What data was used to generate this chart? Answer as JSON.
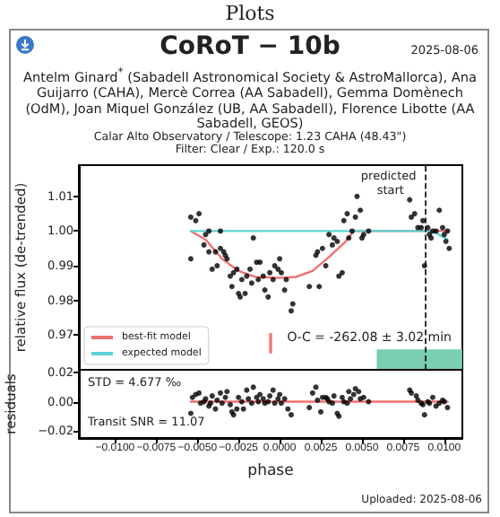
{
  "chart_data": [
    {
      "type": "scatter",
      "title": "CoRoT − 10b",
      "ylabel": "relative flux (de-trended)",
      "annotations": [
        "Plots",
        "2025-08-06",
        "Antelm Ginard$^{*}$ (Sabadell Astronomical Society & AstroMallorca), Ana Guijarro (CAHA), Mercè Correa (AA Sabadell), Gemma Domènech (OdM), Joan Miquel González (UB, AA Sabadell), Florence Libotte (AA Sabadell, GEOS)",
        "Calar Alto Observatory / Telescope: 1.23 CAHA (48.43\")",
        "Filter: Clear / Exp.: 120.0 s",
        "O-C = -262.08 ± 3.02 min"
      ],
      "xlim": [
        -0.0122,
        0.0111
      ],
      "xticks": [
        {
          "value": -0.01,
          "label": null
        },
        {
          "value": -0.0075,
          "label": null
        },
        {
          "value": -0.005,
          "label": null
        },
        {
          "value": -0.0025,
          "label": null
        },
        {
          "value": 0,
          "label": null
        },
        {
          "value": 0.0025,
          "label": null
        },
        {
          "value": 0.005,
          "label": null
        },
        {
          "value": 0.0075,
          "label": null
        },
        {
          "value": 0.01,
          "label": null
        }
      ],
      "ylim": [
        0.96,
        1.019
      ],
      "yticks": [
        {
          "value": 0.97,
          "label": "0.97"
        },
        {
          "value": 0.98,
          "label": "0.98"
        },
        {
          "value": 0.99,
          "label": "0.99"
        },
        {
          "value": 1,
          "label": "1.00"
        },
        {
          "value": 1.01,
          "label": "1.01"
        }
      ],
      "tick_labels": "y",
      "legend": "bottom left",
      "ref_lines": [
        {
          "axis": "x",
          "value": 0.0088,
          "label": "predicted start",
          "color": "#000000",
          "line_style": "dashed"
        },
        {
          "axis": "x",
          "value": -0.0006,
          "color": "#f07070"
        }
      ],
      "bands": [
        {
          "axis": "x",
          "from": 0.0059,
          "to": 0.0111,
          "color": "#6cc9a8"
        }
      ],
      "series": [
        {
          "marker": "circle",
          "color": "#000000",
          "x": [
            -0.0054,
            -0.0054,
            -0.0051,
            -0.0049,
            -0.0046,
            -0.0045,
            -0.0043,
            -0.0043,
            -0.0041,
            -0.0039,
            -0.0038,
            -0.0036,
            -0.0036,
            -0.0034,
            -0.0033,
            -0.0032,
            -0.003,
            -0.0029,
            -0.0028,
            -0.0026,
            -0.0025,
            -0.0024,
            -0.0023,
            -0.0021,
            -0.002,
            -0.0018,
            -0.0017,
            -0.0016,
            -0.0014,
            -0.0013,
            -0.0012,
            -0.001,
            -0.0009,
            -0.0007,
            -0.0006,
            -0.0004,
            -0.0003,
            -0.0001,
            0,
            0.0001,
            0.0003,
            0.0004,
            0.0007,
            0.0008,
            0.0018,
            0.0024,
            0.0022,
            0.0023,
            0.0026,
            0.0028,
            0.003,
            0.0032,
            0.0033,
            0.0035,
            0.0036,
            0.0038,
            0.0039,
            0.0041,
            0.0042,
            0.0044,
            0.0046,
            0.0047,
            0.0049,
            0.005,
            0.0051,
            0.0054,
            0.0079,
            0.008,
            0.0082,
            0.0084,
            0.0086,
            0.0087,
            0.0088,
            0.009,
            0.0091,
            0.0092,
            0.0093,
            0.0095,
            0.0097,
            0.0099,
            0.01,
            0.0101,
            0.0103,
            0.0102
          ],
          "values": [
            0.992,
            1.004,
            1.003,
            1.005,
            0.996,
            0.999,
            1,
            0.994,
            0.989,
            0.994,
            0.99,
            1,
            0.995,
            0.994,
            0.993,
            0.992,
            0.987,
            0.984,
            0.988,
            0.989,
            0.982,
            0.981,
            0.986,
            0.982,
            0.987,
            0.989,
            0.985,
            0.998,
            0.991,
            0.986,
            0.991,
            0.987,
            0.983,
            0.981,
            0.988,
            0.986,
            0.99,
            0.989,
            0.992,
            0.988,
            0.983,
            0.986,
            0.977,
            0.979,
            0.984,
            0.984,
            0.993,
            0.994,
            0.995,
            0.99,
            0.999,
            0.996,
            0.998,
            0.997,
            0.987,
            0.988,
            1.003,
            1.005,
            0.998,
            1,
            1.004,
            1.01,
            1.006,
            0.998,
            0.999,
            1,
            1.009,
            1.004,
            1.005,
            1.001,
            1.001,
            1.003,
            0.99,
            1.001,
            0.999,
            0.998,
            1,
            1,
            1.006,
            1.001,
            0.999,
            0.997,
            0.995,
            1
          ]
        },
        {
          "type": "line",
          "name": "best-fit model",
          "color": "#f07070",
          "x": [
            -0.0054,
            -0.0045,
            -0.0035,
            -0.0025,
            -0.0015,
            0,
            0.001,
            0.002,
            0.003,
            0.004,
            0.0045,
            0.0102
          ],
          "values": [
            1,
            0.9975,
            0.992,
            0.9885,
            0.9868,
            0.9865,
            0.9868,
            0.9885,
            0.9925,
            0.997,
            1,
            1
          ]
        },
        {
          "type": "line",
          "name": "expected model",
          "color": "#5fd3d3",
          "x": [
            -0.0054,
            0.0088,
            0.0095,
            0.0102
          ],
          "values": [
            1,
            1,
            0.9995,
            0.9975
          ]
        }
      ]
    },
    {
      "type": "scatter",
      "xlabel": "phase",
      "ylabel": "residuals",
      "annotations": [
        "STD = 4.677 ‰",
        "Transit SNR = 11.07",
        "Uploaded: 2025-08-06"
      ],
      "xlim": [
        -0.0122,
        0.0111
      ],
      "xticks": [
        {
          "value": -0.01,
          "label": "−0.0100"
        },
        {
          "value": -0.0075,
          "label": "−0.0075"
        },
        {
          "value": -0.005,
          "label": "−0.0050"
        },
        {
          "value": -0.0025,
          "label": "−0.0025"
        },
        {
          "value": 0,
          "label": "0.0000"
        },
        {
          "value": 0.0025,
          "label": "0.0025"
        },
        {
          "value": 0.005,
          "label": "0.0050"
        },
        {
          "value": 0.0075,
          "label": "0.0075"
        },
        {
          "value": 0.01,
          "label": "0.0100"
        }
      ],
      "ylim": [
        -0.025,
        0.022
      ],
      "yticks": [
        {
          "value": -0.02,
          "label": "−0.02"
        },
        {
          "value": 0,
          "label": "0.00"
        },
        {
          "value": 0.02,
          "label": "0.02"
        }
      ],
      "series": [
        {
          "marker": "circle",
          "color": "#000000",
          "x": [
            -0.0054,
            -0.0053,
            -0.0051,
            -0.0049,
            -0.0048,
            -0.0046,
            -0.0045,
            -0.0043,
            -0.0042,
            -0.0041,
            -0.0039,
            -0.0038,
            -0.0036,
            -0.0035,
            -0.0033,
            -0.0032,
            -0.003,
            -0.0029,
            -0.0028,
            -0.0026,
            -0.0025,
            -0.0023,
            -0.0022,
            -0.002,
            -0.0019,
            -0.0017,
            -0.0016,
            -0.0014,
            -0.0013,
            -0.0012,
            -0.001,
            -0.0009,
            -0.0007,
            -0.0006,
            -0.0004,
            -0.0003,
            -0.0001,
            0,
            0.0001,
            0.0003,
            0.0005,
            0.0007,
            0.0018,
            0.002,
            0.0022,
            0.0023,
            0.0025,
            0.0026,
            0.0028,
            0.0029,
            0.003,
            0.0032,
            0.0033,
            0.0035,
            0.0036,
            0.0038,
            0.0039,
            0.0041,
            0.0042,
            0.0043,
            0.0045,
            0.0046,
            0.0048,
            0.0049,
            0.0051,
            0.0054,
            0.0079,
            0.008,
            0.0083,
            0.0084,
            0.0086,
            0.0087,
            0.0088,
            0.009,
            0.0091,
            0.0093,
            0.0095,
            0.0097,
            0.0099,
            0.01,
            0.0102
          ],
          "values": [
            -0.008,
            0.003,
            0.005,
            0.006,
            -0.001,
            0,
            0.002,
            -0.003,
            -0.001,
            0.004,
            -0.005,
            0.001,
            0.006,
            -0.001,
            0.003,
            0.007,
            -0.002,
            -0.007,
            -0.009,
            -0.005,
            0.003,
            0,
            -0.005,
            0.008,
            0.002,
            -0.001,
            0.01,
            0.003,
            0,
            0.005,
            0.002,
            -0.001,
            0,
            0.004,
            0.008,
            -0.001,
            0.002,
            0.005,
            -0.001,
            0.002,
            -0.005,
            -0.009,
            -0.004,
            0.006,
            0.01,
            0.001,
            -0.007,
            0.003,
            0.003,
            0.002,
            0,
            -0.001,
            0.004,
            -0.008,
            -0.01,
            0.003,
            0,
            -0.001,
            0.007,
            0.002,
            0.005,
            0.009,
            0.007,
            0.002,
            0.003,
            0,
            0.008,
            0.006,
            0.004,
            0.001,
            -0.001,
            -0.002,
            -0.009,
            0,
            -0.001,
            0.003,
            -0.003,
            -0.001,
            0.001,
            0,
            -0.004
          ]
        },
        {
          "type": "line",
          "color": "#f07070",
          "x": [
            -0.0054,
            0.0102
          ],
          "values": [
            0,
            0
          ]
        }
      ]
    }
  ]
}
